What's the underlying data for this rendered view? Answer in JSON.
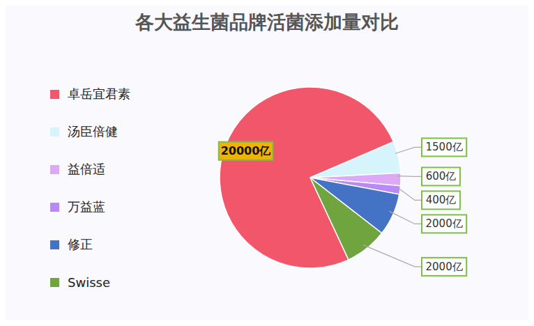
{
  "chart_data": {
    "type": "pie",
    "title": "各大益生菌品牌活菌添加量对比",
    "categories": [
      "卓岳宜君素",
      "汤臣倍健",
      "益倍适",
      "万益蓝",
      "修正",
      "Swisse"
    ],
    "values": [
      20000,
      1500,
      600,
      400,
      2000,
      2000
    ],
    "value_labels": [
      "20000亿",
      "1500亿",
      "600亿",
      "400亿",
      "2000亿",
      "2000亿"
    ],
    "colors": [
      "#f2566b",
      "#d6f4fb",
      "#dba9f5",
      "#b98af5",
      "#4472c4",
      "#70a43f"
    ],
    "legend": "left",
    "data_labels": true
  }
}
